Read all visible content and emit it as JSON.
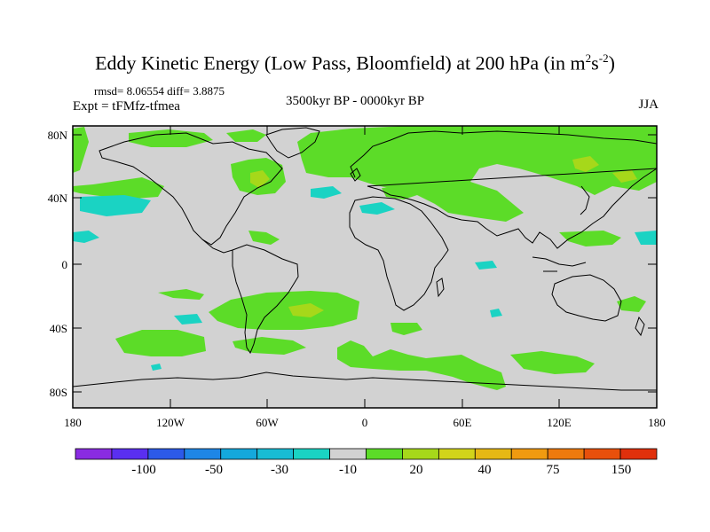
{
  "title_main": "Eddy Kinetic Energy (Low Pass, Bloomfield) at 200 hPa (in m",
  "title_sup1": "2",
  "title_mid": "s",
  "title_sup2": "-2",
  "title_end": ")",
  "stats": "rmsd= 8.06554 diff= 3.8875",
  "experiment": "Expt = tFMfz-tfmea",
  "period": "3500kyr BP - 0000kyr BP",
  "season": "JJA",
  "lat_ticks": [
    "80N",
    "40N",
    "0",
    "40S",
    "80S"
  ],
  "lon_ticks": [
    "180",
    "120W",
    "60W",
    "0",
    "60E",
    "120E",
    "180"
  ],
  "colorbar": {
    "colors": [
      "#8a2be2",
      "#5a2ff0",
      "#2c5ae8",
      "#1e86e6",
      "#14a8dc",
      "#18bcd4",
      "#1ad3c3",
      "#d2d2d2",
      "#5cdc28",
      "#a6d81a",
      "#d2d41a",
      "#e6b814",
      "#f09a10",
      "#ee7a0e",
      "#e8500c",
      "#e0300c"
    ],
    "labels": [
      "-100",
      "-50",
      "-30",
      "-10",
      "20",
      "40",
      "75",
      "150"
    ]
  },
  "colors": {
    "background_field": "#d2d2d2",
    "positive": "#5cdc28",
    "positive_strong": "#a6d81a",
    "negative": "#1ad3c3"
  }
}
